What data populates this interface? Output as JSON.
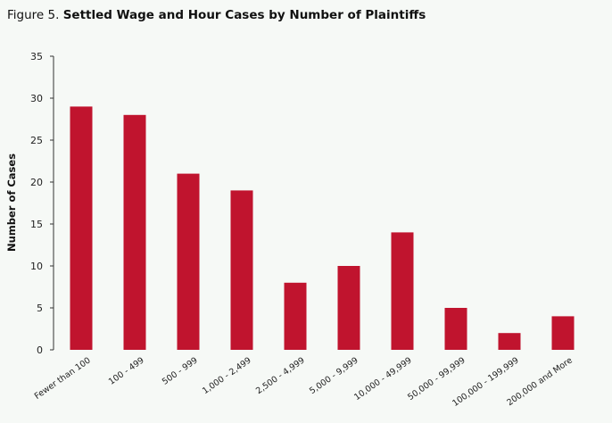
{
  "figure": {
    "lead": "Figure 5.",
    "title": "Settled Wage and Hour Cases by Number of Plaintiffs"
  },
  "chart_data": {
    "type": "bar",
    "title": "Settled Wage and Hour Cases by Number of Plaintiffs",
    "xlabel": "",
    "ylabel": "Number of Cases",
    "ylim": [
      0,
      35
    ],
    "yticks": [
      0,
      5,
      10,
      15,
      20,
      25,
      30,
      35
    ],
    "grid": false,
    "bar_color": "#c0142e",
    "categories": [
      "Fewer than 100",
      "100 - 499",
      "500 - 999",
      "1,000 - 2,499",
      "2,500 - 4,999",
      "5,000 - 9,999",
      "10,000 - 49,999",
      "50,000 - 99,999",
      "100,000 - 199,999",
      "200,000 and More"
    ],
    "values": [
      29,
      28,
      21,
      19,
      8,
      10,
      14,
      5,
      2,
      4
    ]
  }
}
